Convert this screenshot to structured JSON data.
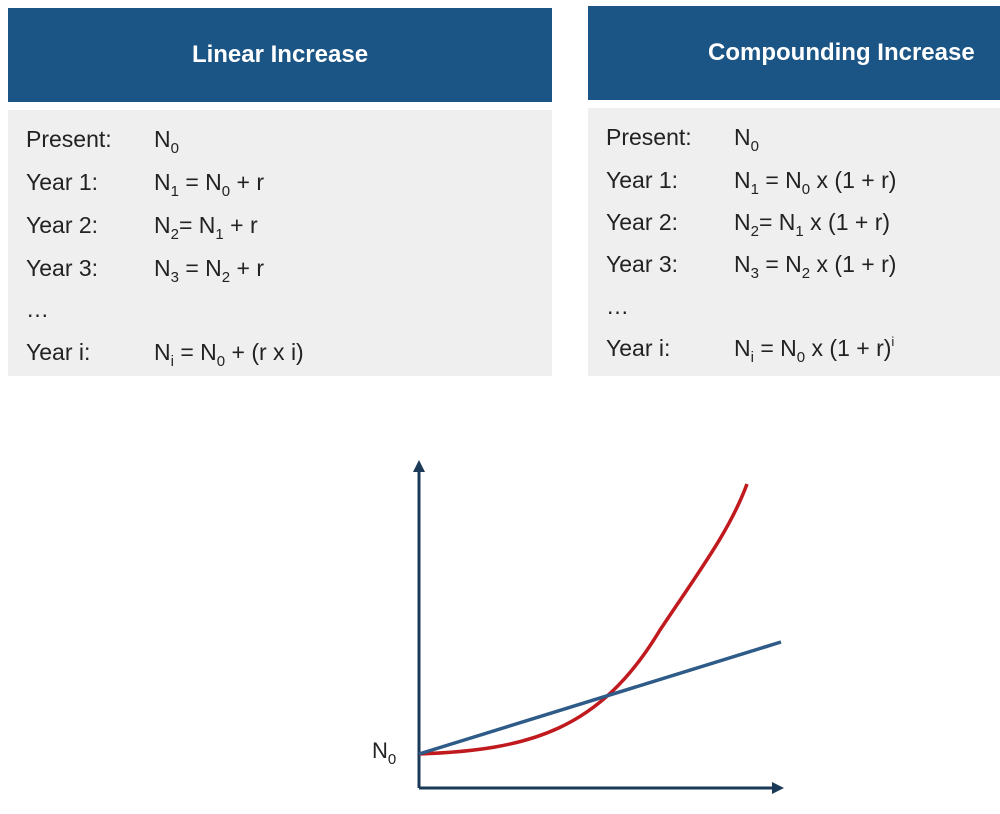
{
  "linear": {
    "title": "Linear Increase",
    "rows": [
      {
        "label": "Present:",
        "formula": "N<sub>0</sub>"
      },
      {
        "label": "Year 1:",
        "formula": "N<sub>1</sub> = N<sub>0</sub> + r"
      },
      {
        "label": "Year 2:",
        "formula": "N<sub>2</sub>= N<sub>1</sub> + r"
      },
      {
        "label": "Year 3:",
        "formula": "N<sub>3</sub> = N<sub>2</sub> + r"
      },
      {
        "label": "…",
        "formula": ""
      },
      {
        "label": "Year i:",
        "formula": "N<sub>i</sub> = N<sub>0</sub> + (r x i)"
      }
    ]
  },
  "compounding": {
    "title": "Compounding Increase",
    "rows": [
      {
        "label": "Present:",
        "formula": "N<sub>0</sub>"
      },
      {
        "label": "Year 1:",
        "formula": "N<sub>1</sub> = N<sub>0</sub> x (1 + r)"
      },
      {
        "label": "Year 2:",
        "formula": "N<sub>2</sub>= N<sub>1</sub> x (1 + r)"
      },
      {
        "label": "Year 3:",
        "formula": "N<sub>3</sub> = N<sub>2</sub> x (1 + r)"
      },
      {
        "label": "…",
        "formula": ""
      },
      {
        "label": "Year i:",
        "formula": "N<sub>i</sub> = N<sub>0</sub> x (1 + r)<sup>i</sup>"
      }
    ]
  },
  "graph": {
    "y_intercept_label": "N",
    "y_intercept_subscript": "0",
    "colors": {
      "axes": "#1b3a57",
      "linear_line": "#2e5b87",
      "compound_curve": "#c0191e",
      "header_bg": "#1b5585",
      "panel_bg": "#efefef"
    }
  }
}
